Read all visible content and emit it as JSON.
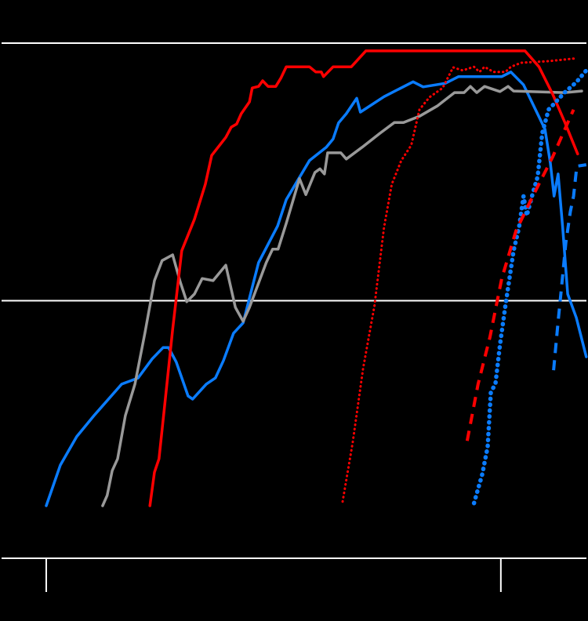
{
  "chart_data": {
    "type": "line",
    "background": "#000000",
    "grid": true,
    "grid_color": "#ffffff",
    "xlim": [
      -10,
      119
    ],
    "xticks": [
      0,
      100
    ],
    "ylim": [
      0,
      100
    ],
    "yticks": [
      0,
      50,
      100
    ],
    "series": [
      {
        "color": "#0a7cff",
        "style": "solid",
        "x": [
          0,
          3.1,
          6.7,
          10.5,
          16.6,
          20.2,
          23.3,
          25.7,
          26.9,
          28.6,
          31.2,
          32.2,
          35.2,
          37.2,
          39.0,
          41.2,
          43.3,
          46.7,
          50.9,
          52.8,
          57.9,
          61.6,
          63.1,
          64.3,
          66.0,
          68.3,
          69.1,
          74.3,
          80.7,
          82.9,
          87.8,
          90.7,
          100.2,
          102.2,
          105.0,
          109.7,
          110.9,
          111.7,
          112.6,
          113.6,
          114.7,
          116.6,
          118.8
        ],
        "values": [
          10.2,
          18.1,
          23.6,
          27.7,
          33.8,
          35.0,
          38.7,
          40.9,
          40.9,
          38.1,
          31.5,
          30.9,
          33.8,
          35.0,
          38.4,
          43.7,
          45.7,
          57.4,
          64.5,
          69.6,
          77.2,
          79.8,
          81.4,
          84.5,
          86.3,
          89.3,
          86.6,
          89.6,
          92.5,
          91.5,
          92.2,
          93.5,
          93.5,
          94.4,
          91.9,
          83.3,
          76.7,
          70.3,
          74.6,
          64.2,
          51.3,
          46.7,
          39.1
        ]
      },
      {
        "color": "#999999",
        "style": "solid",
        "x": [
          12.4,
          13.4,
          14.5,
          15.7,
          17.4,
          19.5,
          21.7,
          23.8,
          25.5,
          27.8,
          29.5,
          30.9,
          32.6,
          34.3,
          36.7,
          39.5,
          41.6,
          43.3,
          44.7,
          48.4,
          49.8,
          51.0,
          52.8,
          55.7,
          57.1,
          59.1,
          60.2,
          61.2,
          61.9,
          64.8,
          66.0,
          69.5,
          73.4,
          76.6,
          78.6,
          82.1,
          86.0,
          89.8,
          91.9,
          93.3,
          94.7,
          96.4,
          99.8,
          101.6,
          102.8,
          114.0,
          117.8
        ],
        "values": [
          10.2,
          12.2,
          17.0,
          19.3,
          27.7,
          33.8,
          43.7,
          53.9,
          57.8,
          58.9,
          53.6,
          49.8,
          51.3,
          54.3,
          53.9,
          56.9,
          48.7,
          46.0,
          48.7,
          57.4,
          60.0,
          60.0,
          65.0,
          73.7,
          70.6,
          74.9,
          75.6,
          74.6,
          78.7,
          78.7,
          77.5,
          79.8,
          82.5,
          84.6,
          84.6,
          85.8,
          87.8,
          90.4,
          90.4,
          91.6,
          90.4,
          91.6,
          90.6,
          91.6,
          90.7,
          90.4,
          90.7
        ]
      },
      {
        "color": "#ff0000",
        "style": "solid",
        "x": [
          22.8,
          23.8,
          24.8,
          26.0,
          27.8,
          29.8,
          32.6,
          35.0,
          36.4,
          39.5,
          40.7,
          41.9,
          42.9,
          44.7,
          45.3,
          46.7,
          47.6,
          48.8,
          50.5,
          51.6,
          52.8,
          57.9,
          59.3,
          60.5,
          61.0,
          63.1,
          67.1,
          70.3,
          105.3,
          108.4,
          111.4,
          114.0,
          116.9
        ],
        "values": [
          10.2,
          16.7,
          19.3,
          29.2,
          44.4,
          59.7,
          65.8,
          72.6,
          78.2,
          81.7,
          83.7,
          84.3,
          86.3,
          88.6,
          91.3,
          91.6,
          92.7,
          91.6,
          91.6,
          93.2,
          95.4,
          95.4,
          94.4,
          94.4,
          93.5,
          95.4,
          95.4,
          98.5,
          98.5,
          95.4,
          90.1,
          84.8,
          78.5
        ]
      },
      {
        "color": "#ff0000",
        "style": "dotted",
        "x": [
          65.2,
          67.4,
          69.7,
          72.2,
          74.3,
          76.0,
          78.1,
          80.3,
          82.1,
          84.3,
          87.2,
          89.5,
          91.6,
          94.1,
          95.3,
          96.4,
          98.4,
          101.0,
          102.2,
          104.5,
          110.5,
          116.0
        ],
        "values": [
          11.0,
          22.4,
          36.8,
          49.0,
          64.2,
          72.6,
          77.2,
          80.2,
          87.1,
          89.5,
          91.3,
          95.3,
          94.7,
          95.4,
          94.4,
          95.4,
          94.4,
          94.4,
          95.4,
          96.2,
          96.5,
          97.0
        ]
      },
      {
        "color": "#0a7cff",
        "style": "dotted",
        "x": [
          94.1,
          95.9,
          97.1,
          97.8,
          98.8,
          99.8,
          101.0,
          102.8,
          104.0,
          105.0,
          105.7,
          107.1,
          108.1,
          109.1,
          110.5,
          114.0,
          116.6,
          118.8
        ],
        "values": [
          10.7,
          16.3,
          21.6,
          32.3,
          33.8,
          41.4,
          49.0,
          59.7,
          64.2,
          70.3,
          66.5,
          71.1,
          74.1,
          82.5,
          87.1,
          90.4,
          92.4,
          94.7
        ]
      },
      {
        "color": "#ff0000",
        "style": "dashed",
        "x": [
          92.6,
          95.0,
          97.6,
          100.2,
          103.3,
          106.2,
          108.8,
          111.4,
          116.0
        ],
        "values": [
          22.8,
          33.8,
          42.9,
          54.3,
          63.5,
          68.8,
          73.4,
          77.9,
          87.1
        ]
      },
      {
        "color": "#0a7cff",
        "style": "dashed",
        "x": [
          111.6,
          112.6,
          113.3,
          114.3,
          115.3,
          116.0,
          116.7,
          118.8
        ],
        "values": [
          36.5,
          46.0,
          52.1,
          61.2,
          67.3,
          70.3,
          76.1,
          76.4
        ]
      }
    ]
  }
}
